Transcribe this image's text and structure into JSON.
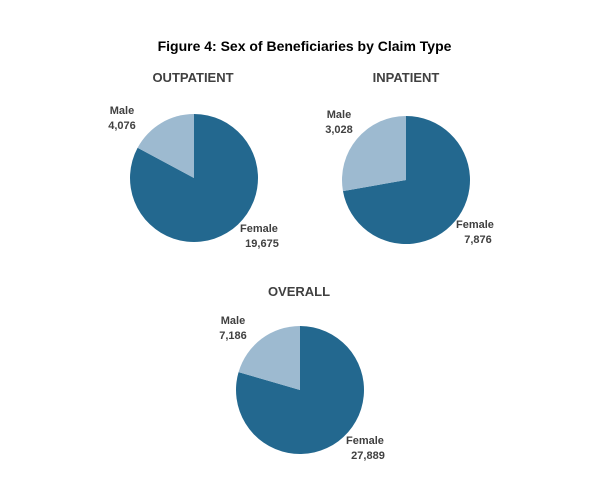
{
  "figure": {
    "title": "Figure 4: Sex of Beneficiaries by Claim Type"
  },
  "colors": {
    "female": "#23688F",
    "male": "#9DBAD0"
  },
  "chart_data": [
    {
      "type": "pie",
      "title": "OUTPATIENT",
      "labels": [
        "Female",
        "Male"
      ],
      "values": [
        19675,
        4076
      ],
      "value_labels": [
        "19,675",
        "4,076"
      ]
    },
    {
      "type": "pie",
      "title": "INPATIENT",
      "labels": [
        "Female",
        "Male"
      ],
      "values": [
        7876,
        3028
      ],
      "value_labels": [
        "7,876",
        "3,028"
      ]
    },
    {
      "type": "pie",
      "title": "OVERALL",
      "labels": [
        "Female",
        "Male"
      ],
      "values": [
        27889,
        7186
      ],
      "value_labels": [
        "27,889",
        "7,186"
      ]
    }
  ]
}
